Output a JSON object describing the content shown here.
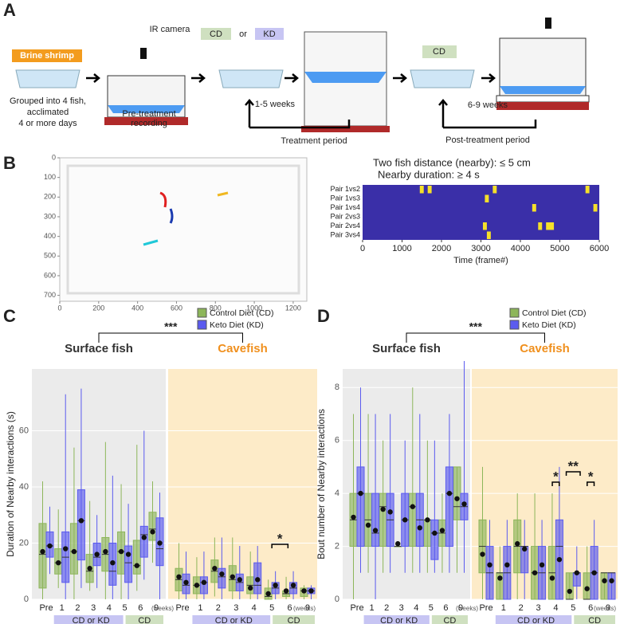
{
  "panel_labels": [
    "A",
    "B",
    "C",
    "D"
  ],
  "schematic": {
    "brine_shrimp": "Brine shrimp",
    "grouped": [
      "Grouped into 4 fish,",
      "acclimated",
      "4 or more days"
    ],
    "ir_camera": "IR camera",
    "pre_treatment": [
      "Pre-treatment",
      "recording"
    ],
    "diet_cd": "CD",
    "diet_or": "or",
    "diet_kd": "KD",
    "treatment_weeks": "1-5 weeks",
    "treatment_period": "Treatment period",
    "post_diet": "CD",
    "post_weeks": "6-9 weeks",
    "post_period": "Post-treatment period"
  },
  "chart_data": [
    {
      "type": "image",
      "xlim": [
        0,
        1270
      ],
      "ylim": [
        730,
        0
      ],
      "xticks": [
        0,
        200,
        400,
        600,
        800,
        1000,
        1200
      ],
      "yticks": [
        0,
        100,
        200,
        300,
        400,
        500,
        600,
        700
      ]
    },
    {
      "type": "heatmap",
      "title": "Two fish distance (nearby): ≤ 5 cm",
      "subtitle": "Nearby duration: ≥ 4 s",
      "rows": [
        "Pair 1vs2",
        "Pair 1vs3",
        "Pair 1vs4",
        "Pair 2vs3",
        "Pair 2vs4",
        "Pair 3vs4"
      ],
      "background": "#3a2fa8",
      "color": "#f5e02a",
      "events": [
        {
          "row": 0,
          "start": 1450,
          "end": 1550
        },
        {
          "row": 0,
          "start": 1650,
          "end": 1750
        },
        {
          "row": 0,
          "start": 3300,
          "end": 3400
        },
        {
          "row": 0,
          "start": 5650,
          "end": 5750
        },
        {
          "row": 1,
          "start": 3100,
          "end": 3200
        },
        {
          "row": 2,
          "start": 4300,
          "end": 4400
        },
        {
          "row": 2,
          "start": 5850,
          "end": 5950
        },
        {
          "row": 4,
          "start": 3050,
          "end": 3150
        },
        {
          "row": 4,
          "start": 4450,
          "end": 4550
        },
        {
          "row": 4,
          "start": 4650,
          "end": 4850
        },
        {
          "row": 5,
          "start": 3150,
          "end": 3250
        }
      ],
      "xlim": [
        0,
        6000
      ],
      "xticks": [
        0,
        1000,
        2000,
        3000,
        4000,
        5000,
        6000
      ],
      "xlabel": "Time (frame#)"
    },
    {
      "type": "box",
      "ylabel": "Duration of Nearby interactions (s)",
      "ylim": [
        0,
        82
      ],
      "yticks": [
        0,
        20,
        40,
        60
      ],
      "categories": [
        "Pre",
        "1",
        "2",
        "3",
        "4",
        "5",
        "6",
        "9"
      ],
      "x_unit": "(weeks)",
      "series": [
        {
          "name": "Control Diet (CD)",
          "color": "#8db65a"
        },
        {
          "name": "Keto Diet (KD)",
          "color": "#5b5bef"
        }
      ],
      "periods": [
        "CD or KD",
        "CD"
      ],
      "annotations": [
        "***",
        "*"
      ],
      "groups": [
        {
          "name": "Surface fish",
          "background": "#ebebeb",
          "title_color": "#333333",
          "data": [
            {
              "lo": [
                0,
                4,
                0,
                3,
                0,
                0,
                3,
                13
              ],
              "q1": [
                4,
                9,
                9,
                6,
                10,
                9,
                9,
                21
              ],
              "median": [
                16,
                13,
                17,
                10,
                16,
                17,
                12,
                25
              ],
              "q3": [
                27,
                18,
                27,
                16,
                22,
                24,
                21,
                31
              ],
              "hi": [
                42,
                32,
                54,
                35,
                56,
                41,
                55,
                42
              ],
              "mean": [
                17,
                13,
                17,
                11,
                17,
                17,
                12,
                24
              ]
            },
            {
              "lo": [
                9,
                0,
                4,
                4,
                0,
                0,
                7,
                0
              ],
              "q1": [
                15,
                6,
                14,
                12,
                5,
                6,
                15,
                12
              ],
              "median": [
                19,
                15,
                28,
                15,
                10,
                13,
                23,
                18
              ],
              "q3": [
                24,
                24,
                39,
                20,
                20,
                19,
                26,
                29
              ],
              "hi": [
                33,
                73,
                75,
                30,
                44,
                34,
                60,
                38
              ],
              "mean": [
                19,
                18,
                28,
                16,
                13,
                16,
                22,
                20
              ]
            }
          ]
        },
        {
          "name": "Cavefish",
          "background": "#fdebc8",
          "title_color": "#f0901e",
          "data": [
            {
              "lo": [
                0,
                0,
                1,
                0,
                0,
                0,
                0,
                0
              ],
              "q1": [
                3,
                2,
                6,
                3,
                2,
                0,
                1,
                1
              ],
              "median": [
                7,
                5,
                10,
                7,
                5,
                1,
                2,
                3
              ],
              "q3": [
                11,
                8,
                14,
                12,
                8,
                4,
                3,
                4
              ],
              "hi": [
                20,
                15,
                22,
                22,
                17,
                7,
                8,
                5
              ],
              "mean": [
                8,
                5,
                11,
                8,
                4,
                2,
                3,
                3
              ]
            },
            {
              "lo": [
                0,
                0,
                0,
                0,
                0,
                0,
                0,
                0
              ],
              "q1": [
                2,
                2,
                4,
                3,
                2,
                2,
                2,
                2
              ],
              "median": [
                5,
                6,
                8,
                6,
                5,
                4,
                4,
                3
              ],
              "q3": [
                9,
                8,
                11,
                9,
                13,
                6,
                6,
                4
              ],
              "hi": [
                17,
                17,
                22,
                19,
                19,
                10,
                10,
                5
              ],
              "mean": [
                6,
                6,
                9,
                7,
                7,
                5,
                5,
                3
              ]
            }
          ]
        }
      ]
    },
    {
      "type": "box",
      "ylabel": "Bout number of Nearby interactions",
      "ylim": [
        0,
        8.7
      ],
      "yticks": [
        0,
        2,
        4,
        6,
        8
      ],
      "categories": [
        "Pre",
        "1",
        "2",
        "3",
        "4",
        "5",
        "6",
        "9"
      ],
      "x_unit": "(weeks)",
      "series": [
        {
          "name": "Control Diet (CD)",
          "color": "#8db65a"
        },
        {
          "name": "Keto Diet (KD)",
          "color": "#5b5bef"
        }
      ],
      "periods": [
        "CD or KD",
        "CD"
      ],
      "annotations": [
        "***",
        "*",
        "**",
        "*"
      ],
      "groups": [
        {
          "name": "Surface fish",
          "background": "#ebebeb",
          "title_color": "#333333",
          "data": [
            {
              "lo": [
                0,
                1,
                1,
                2,
                1,
                1,
                1,
                1
              ],
              "q1": [
                2,
                2,
                2,
                2,
                2,
                2,
                2,
                3
              ],
              "median": [
                3,
                3,
                3.5,
                2,
                3.5,
                3,
                2.5,
                3.5
              ],
              "q3": [
                4,
                4,
                4,
                2,
                4,
                3,
                3,
                5
              ],
              "hi": [
                7,
                7,
                6,
                2,
                8,
                6,
                4,
                5
              ],
              "mean": [
                3.1,
                2.8,
                3.4,
                2.1,
                3.5,
                3,
                2.6,
                3.8
              ]
            },
            {
              "lo": [
                1,
                0,
                1,
                1,
                1,
                1,
                1,
                1
              ],
              "q1": [
                2,
                2,
                2,
                2,
                2,
                1.5,
                2,
                3
              ],
              "median": [
                4,
                2.5,
                3,
                3,
                3,
                2.5,
                4,
                3.5
              ],
              "q3": [
                5,
                4,
                4,
                4,
                4,
                3,
                5,
                4
              ],
              "hi": [
                8,
                7,
                7,
                6,
                7,
                6,
                7,
                9
              ],
              "mean": [
                4,
                2.6,
                3.3,
                3,
                2.7,
                2.5,
                4,
                3.6
              ]
            }
          ]
        },
        {
          "name": "Cavefish",
          "background": "#fdebc8",
          "title_color": "#f0901e",
          "data": [
            {
              "lo": [
                0,
                0,
                0,
                0,
                0,
                0,
                0,
                0
              ],
              "q1": [
                1,
                0,
                1,
                0,
                0,
                0,
                0,
                0
              ],
              "median": [
                2,
                1,
                2,
                1,
                1,
                0,
                0,
                1
              ],
              "q3": [
                3,
                1,
                3,
                2,
                2,
                1,
                1,
                1
              ],
              "hi": [
                5,
                2,
                4,
                4,
                4,
                1,
                2,
                1
              ],
              "mean": [
                1.7,
                0.8,
                2.1,
                1,
                0.8,
                0.3,
                0.4,
                0.7
              ]
            },
            {
              "lo": [
                0,
                0,
                0,
                0,
                0,
                0,
                0,
                0
              ],
              "q1": [
                0,
                0,
                1,
                0,
                0,
                0.5,
                0,
                0
              ],
              "median": [
                1,
                1,
                2,
                1,
                2,
                1,
                1,
                1
              ],
              "q3": [
                2,
                2,
                2,
                2,
                3,
                1,
                2,
                1
              ],
              "hi": [
                3,
                3,
                3,
                3,
                5,
                2,
                3,
                1
              ],
              "mean": [
                1.3,
                1.3,
                1.9,
                1.3,
                1.5,
                1,
                1,
                0.7
              ]
            }
          ]
        }
      ]
    }
  ]
}
